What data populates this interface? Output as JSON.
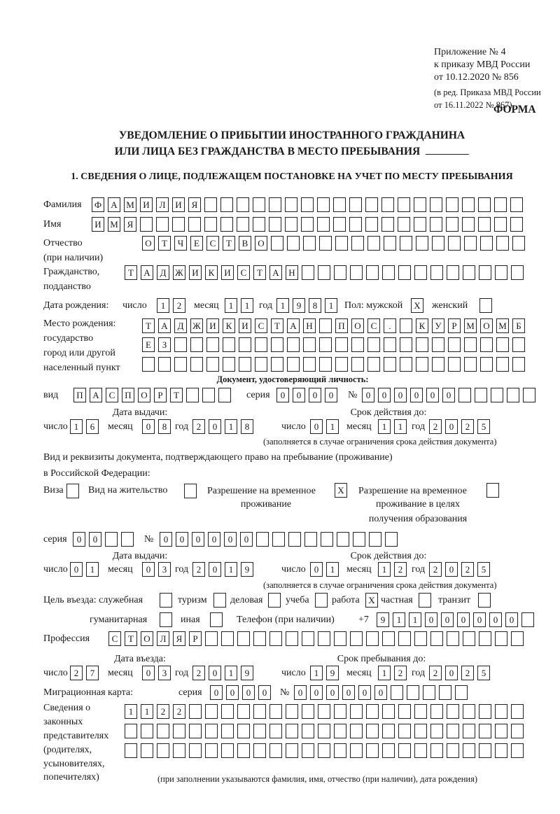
{
  "header": {
    "appendix": [
      "Приложение № 4",
      "к приказу МВД России",
      "от 10.12.2020 № 856"
    ],
    "amendment": [
      "(в ред. Приказа МВД России",
      "от 16.11.2022 № 867)"
    ],
    "form_label": "ФОРМА"
  },
  "title": {
    "line1": "УВЕДОМЛЕНИЕ О ПРИБЫТИИ ИНОСТРАННОГО ГРАЖДАНИНА",
    "line2": "ИЛИ ЛИЦА БЕЗ ГРАЖДАНСТВА В МЕСТО ПРЕБЫВАНИЯ"
  },
  "section1": {
    "heading": "1. СВЕДЕНИЯ О ЛИЦЕ, ПОДЛЕЖАЩЕМ ПОСТАНОВКЕ НА УЧЕТ ПО МЕСТУ ПРЕБЫВАНИЯ"
  },
  "labels": {
    "surname": "Фамилия",
    "name": "Имя",
    "patronymic": [
      "Отчество",
      "(при наличии)"
    ],
    "citizenship": [
      "Гражданство,",
      "подданство"
    ],
    "birth_date": "Дата рождения:",
    "day": "число",
    "month": "месяц",
    "year": "год",
    "sex": "Пол: мужской",
    "female": "женский",
    "birthplace": [
      "Место рождения:",
      "государство",
      "город или другой",
      "населенный пункт"
    ],
    "id_doc_heading": "Документ, удостоверяющий личность:",
    "kind": "вид",
    "series": "серия",
    "number": "№",
    "issue_date": "Дата выдачи:",
    "valid_until": "Срок действия до:",
    "validity_note": "(заполняется в случае ограничения срока действия документа)",
    "residence_doc": [
      "Вид и реквизиты документа, подтверждающего право на пребывание (проживание)",
      "в Российской Федерации:"
    ],
    "visa": "Виза",
    "residence_permit": "Вид на жительство",
    "temp_residence": [
      "Разрешение на временное",
      "проживание"
    ],
    "temp_residence_edu": [
      "Разрешение на временное",
      "проживание в целях",
      "получения образования"
    ],
    "purpose": "Цель въезда: служебная",
    "tourism": "туризм",
    "business": "деловая",
    "study": "учеба",
    "work": "работа",
    "private": "частная",
    "transit": "транзит",
    "humanitarian": "гуманитарная",
    "other": "иная",
    "phone": "Телефон (при наличии)",
    "phone_prefix": "+7",
    "profession": "Профессия",
    "entry_date": "Дата въезда:",
    "stay_until": "Срок пребывания до:",
    "migration_card": "Миграционная карта:",
    "legal_reps": [
      "Сведения о",
      "законных",
      "представителях",
      "(родителях,",
      "усыновителях,",
      "попечителях)"
    ],
    "legal_reps_note": "(при заполнении указываются фамилия, имя, отчество (при наличии), дата рождения)"
  },
  "person": {
    "surname": "ФАМИЛИЯ",
    "name": "ИМЯ",
    "patronymic": "ОТЧЕСТВО",
    "citizenship": "ТАДЖИКИСТАН",
    "birth_day": "12",
    "birth_month": "11",
    "birth_year": "1981",
    "sex_male": "X",
    "sex_female": "",
    "birthplace_1": "ТАДЖИКИСТАН ПОС. КУРМОМБ",
    "birthplace_2": "ЕЗ",
    "birthplace_3": ""
  },
  "id_document": {
    "kind": "ПАСПОРТ",
    "series": "0000",
    "number": "000000",
    "issue_day": "16",
    "issue_month": "08",
    "issue_year": "2018",
    "valid_day": "01",
    "valid_month": "11",
    "valid_year": "2025"
  },
  "residence_document": {
    "visa": "",
    "residence_permit": "",
    "temp_residence": "X",
    "temp_residence_edu": "",
    "series": "00",
    "number": "000000",
    "issue_day": "01",
    "issue_month": "03",
    "issue_year": "2019",
    "valid_day": "01",
    "valid_month": "12",
    "valid_year": "2025"
  },
  "purpose": {
    "official": "",
    "tourism": "",
    "business": "",
    "study": "",
    "work": "X",
    "private": "",
    "transit": "",
    "humanitarian": "",
    "other": ""
  },
  "phone": "911000000",
  "profession": "СТОЛЯР",
  "stay": {
    "entry_day": "27",
    "entry_month": "03",
    "entry_year": "2019",
    "until_day": "19",
    "until_month": "12",
    "until_year": "2025"
  },
  "migration_card": {
    "series": "0000",
    "number": "000000"
  },
  "legal_reps": {
    "line1": "1122",
    "line2": "",
    "line3": ""
  }
}
